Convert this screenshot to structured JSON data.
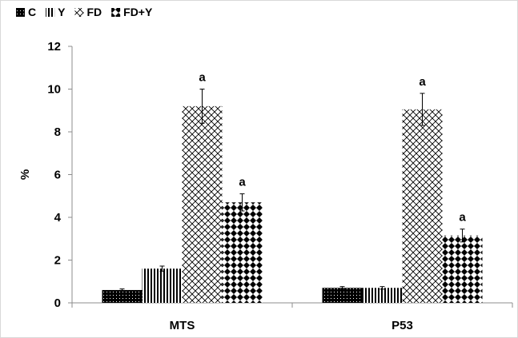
{
  "chart_data": {
    "type": "bar",
    "title": "",
    "xlabel": "",
    "ylabel": "%",
    "ylim": [
      0,
      12
    ],
    "yticks": [
      0,
      2,
      4,
      6,
      8,
      10,
      12
    ],
    "grid": false,
    "legend_position": "top-left",
    "categories": [
      "MTS",
      "P53"
    ],
    "series": [
      {
        "name": "C",
        "values": [
          0.6,
          0.7
        ],
        "errors": [
          0.05,
          0.06
        ],
        "labels": [
          "",
          ""
        ],
        "pattern": "solid-dots"
      },
      {
        "name": "Y",
        "values": [
          1.6,
          0.7
        ],
        "errors": [
          0.12,
          0.06
        ],
        "labels": [
          "",
          ""
        ],
        "pattern": "vertical-lines"
      },
      {
        "name": "FD",
        "values": [
          9.2,
          9.05
        ],
        "errors": [
          0.8,
          0.75
        ],
        "labels": [
          "a",
          "a"
        ],
        "pattern": "crosshatch"
      },
      {
        "name": "FD+Y",
        "values": [
          4.7,
          3.15
        ],
        "errors": [
          0.4,
          0.3
        ],
        "labels": [
          "a",
          "a"
        ],
        "pattern": "checker"
      }
    ]
  }
}
